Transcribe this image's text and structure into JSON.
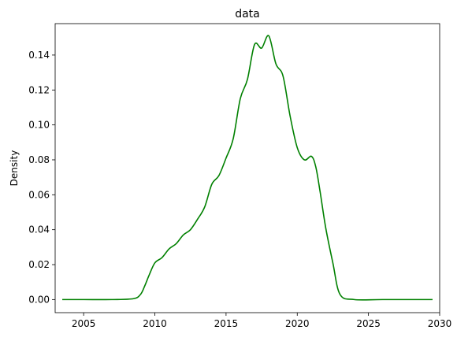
{
  "chart_data": {
    "type": "line",
    "title": "data",
    "xlabel": "",
    "ylabel": "Density",
    "xlim": [
      2003,
      2030
    ],
    "ylim": [
      -0.0075,
      0.158
    ],
    "x_ticks": [
      2005,
      2010,
      2015,
      2020,
      2025,
      2030
    ],
    "x_tick_labels": [
      "2005",
      "2010",
      "2015",
      "2020",
      "2025",
      "2030"
    ],
    "y_ticks": [
      0.0,
      0.02,
      0.04,
      0.06,
      0.08,
      0.1,
      0.12,
      0.14
    ],
    "y_tick_labels": [
      "0.00",
      "0.02",
      "0.04",
      "0.06",
      "0.08",
      "0.10",
      "0.12",
      "0.14"
    ],
    "grid": false,
    "legend": "none",
    "series": [
      {
        "color": "#008000",
        "x": [
          2003.5,
          2005,
          2007,
          2008.5,
          2009,
          2009.3,
          2009.6,
          2010,
          2010.5,
          2011,
          2011.5,
          2012,
          2012.5,
          2013,
          2013.5,
          2014,
          2014.5,
          2015,
          2015.5,
          2016,
          2016.5,
          2017,
          2017.5,
          2018,
          2018.5,
          2019,
          2019.5,
          2020,
          2020.5,
          2021,
          2021.3,
          2021.6,
          2022,
          2022.5,
          2023,
          2024,
          2026,
          2029.5
        ],
        "values": [
          0.0,
          0.0,
          0.0,
          0.0005,
          0.003,
          0.008,
          0.014,
          0.021,
          0.024,
          0.029,
          0.032,
          0.037,
          0.04,
          0.046,
          0.053,
          0.066,
          0.071,
          0.081,
          0.092,
          0.115,
          0.126,
          0.146,
          0.144,
          0.151,
          0.135,
          0.128,
          0.105,
          0.087,
          0.08,
          0.082,
          0.076,
          0.062,
          0.041,
          0.021,
          0.003,
          0.0,
          0.0,
          0.0
        ]
      }
    ]
  }
}
